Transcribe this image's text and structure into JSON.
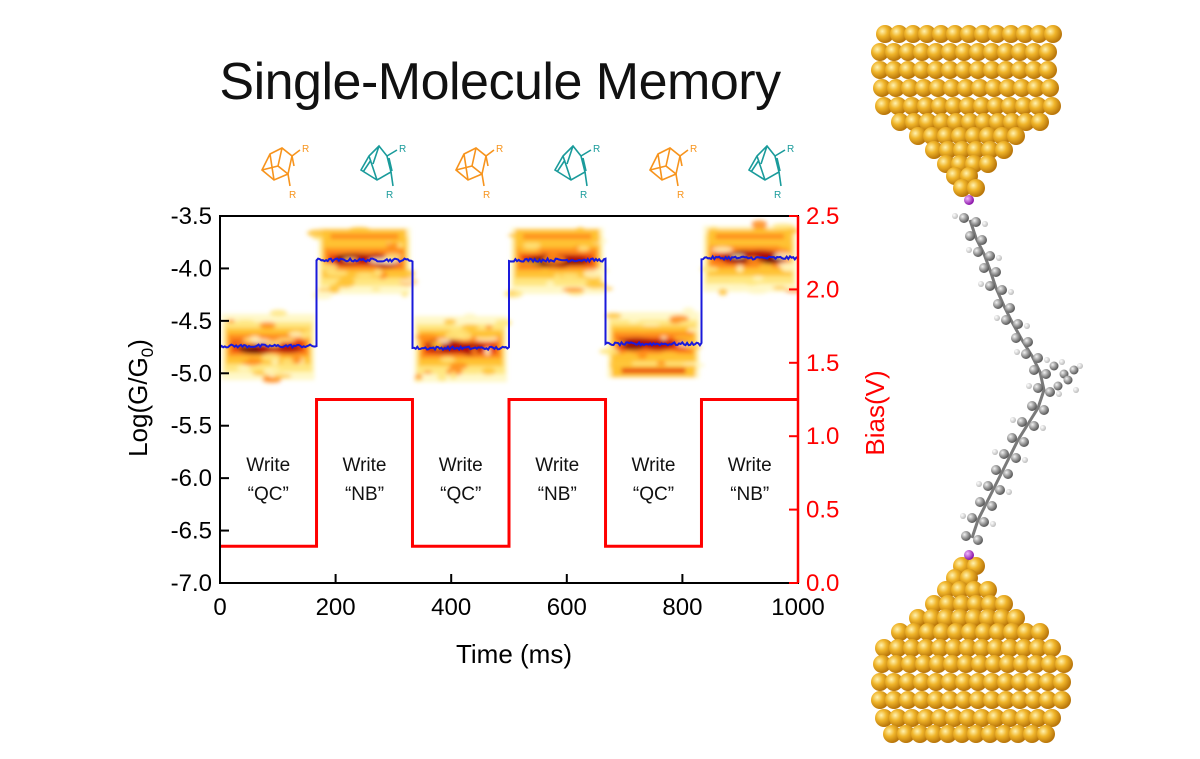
{
  "title": "Single-Molecule Memory",
  "colors": {
    "left_axis": "#000000",
    "right_axis": "#ff0000",
    "conductance_trace": "#1a1adb",
    "bias_trace": "#ff0000",
    "qc_structure": "#f7941d",
    "nb_structure": "#1a9b9b",
    "gold_atom": "#e8a317",
    "carbon_atom": "#8a8a8a",
    "iodine_atom": "#b43cd6"
  },
  "structures": [
    {
      "form": "QC",
      "label": "R"
    },
    {
      "form": "NB",
      "label": "R"
    },
    {
      "form": "QC",
      "label": "R"
    },
    {
      "form": "NB",
      "label": "R"
    },
    {
      "form": "QC",
      "label": "R"
    },
    {
      "form": "NB",
      "label": "R"
    }
  ],
  "chart_data": {
    "type": "line",
    "title": "Single-Molecule Memory",
    "xlabel": "Time (ms)",
    "ylabel": "Log(G/G",
    "ylabel_sub": "0",
    "ylabel_end": ")",
    "y2label": "Bias(V)",
    "xlim": [
      0,
      1000
    ],
    "ylim": [
      -7.0,
      -3.5
    ],
    "y2lim": [
      0.0,
      2.5
    ],
    "x_ticks": [
      0,
      200,
      400,
      600,
      800,
      1000
    ],
    "x_tick_labels": [
      "0",
      "200",
      "400",
      "600",
      "800",
      "1000"
    ],
    "y_ticks": [
      -3.5,
      -4.0,
      -4.5,
      -5.0,
      -5.5,
      -6.0,
      -6.5,
      -7.0
    ],
    "y_tick_labels": [
      "-3.5",
      "-4.0",
      "-4.5",
      "-5.0",
      "-5.5",
      "-6.0",
      "-6.5",
      "-7.0"
    ],
    "y2_ticks": [
      2.5,
      2.0,
      1.5,
      1.0,
      0.5,
      0.0
    ],
    "y2_tick_labels": [
      "2.5",
      "2.0",
      "1.5",
      "1.0",
      "0.5",
      "0.0"
    ],
    "segments": [
      {
        "start": 0,
        "end": 167,
        "write_label": "Write",
        "state_label": "“QC”",
        "log_g": -4.74,
        "bias": 0.25
      },
      {
        "start": 167,
        "end": 333,
        "write_label": "Write",
        "state_label": "“NB”",
        "log_g": -3.92,
        "bias": 1.25
      },
      {
        "start": 333,
        "end": 500,
        "write_label": "Write",
        "state_label": "“QC”",
        "log_g": -4.76,
        "bias": 0.25
      },
      {
        "start": 500,
        "end": 667,
        "write_label": "Write",
        "state_label": "“NB”",
        "log_g": -3.92,
        "bias": 1.25
      },
      {
        "start": 667,
        "end": 833,
        "write_label": "Write",
        "state_label": "“QC”",
        "log_g": -4.72,
        "bias": 0.25
      },
      {
        "start": 833,
        "end": 1000,
        "write_label": "Write",
        "state_label": "“NB”",
        "log_g": -3.9,
        "bias": 1.25
      }
    ],
    "series": [
      {
        "name": "Log(G/G0) average",
        "axis": "left",
        "color": "blue"
      },
      {
        "name": "Bias",
        "axis": "right",
        "color": "red"
      }
    ],
    "heatmap": "2D conductance histogram (orange/red) overlaid behind the average trace"
  }
}
